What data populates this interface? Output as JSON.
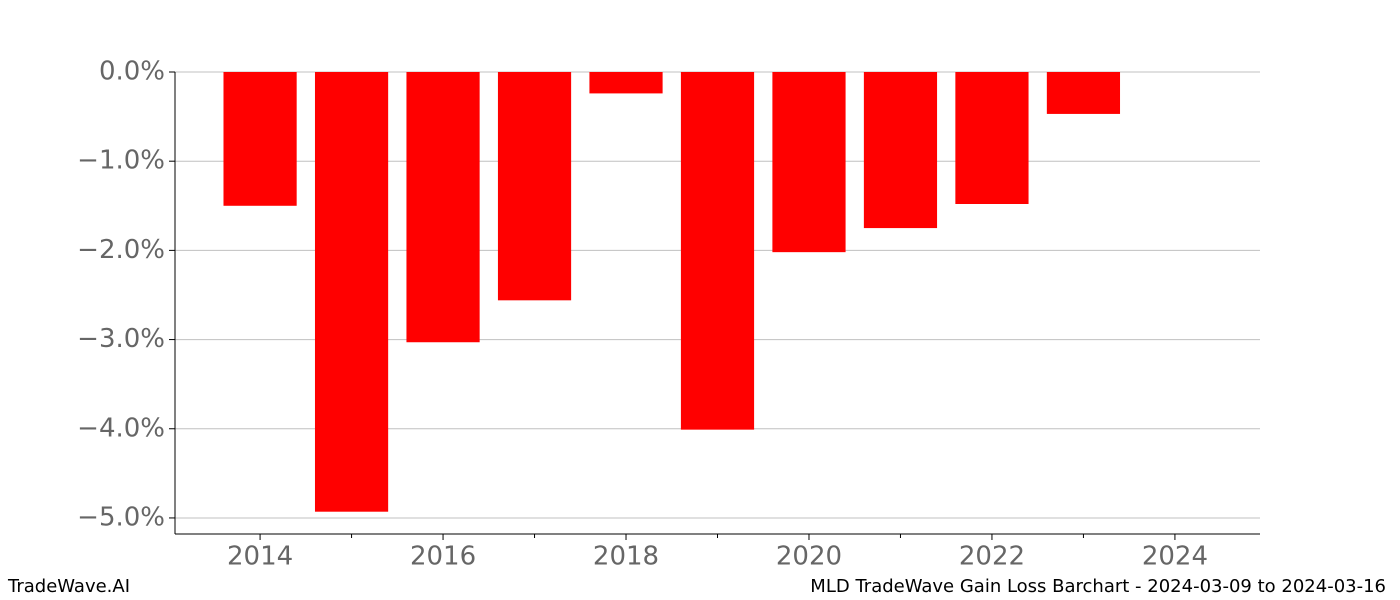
{
  "chart_data": {
    "type": "bar",
    "title": "MLD TradeWave Gain Loss Barchart - 2024-03-09 to 2024-03-16",
    "source": "TradeWave.AI",
    "x": [
      2014,
      2015,
      2016,
      2017,
      2018,
      2019,
      2020,
      2021,
      2022,
      2023
    ],
    "values": [
      -1.5,
      -4.93,
      -3.03,
      -2.56,
      -0.24,
      -4.01,
      -2.02,
      -1.75,
      -1.48,
      -0.47
    ],
    "color": "#ff0000",
    "xlim": [
      2013.07,
      2024.93
    ],
    "xticks": [
      2014,
      2016,
      2018,
      2020,
      2022,
      2024
    ],
    "xticks_minor": [
      2015,
      2017,
      2019,
      2021,
      2023
    ],
    "ylim": [
      -5.18,
      0
    ],
    "yticks": [
      {
        "value": 0,
        "label": "0.0%"
      },
      {
        "value": -1,
        "label": "−1.0%"
      },
      {
        "value": -2,
        "label": "−2.0%"
      },
      {
        "value": -3,
        "label": "−3.0%"
      },
      {
        "value": -4,
        "label": "−4.0%"
      },
      {
        "value": -5,
        "label": "−5.0%"
      }
    ],
    "grid": true
  }
}
